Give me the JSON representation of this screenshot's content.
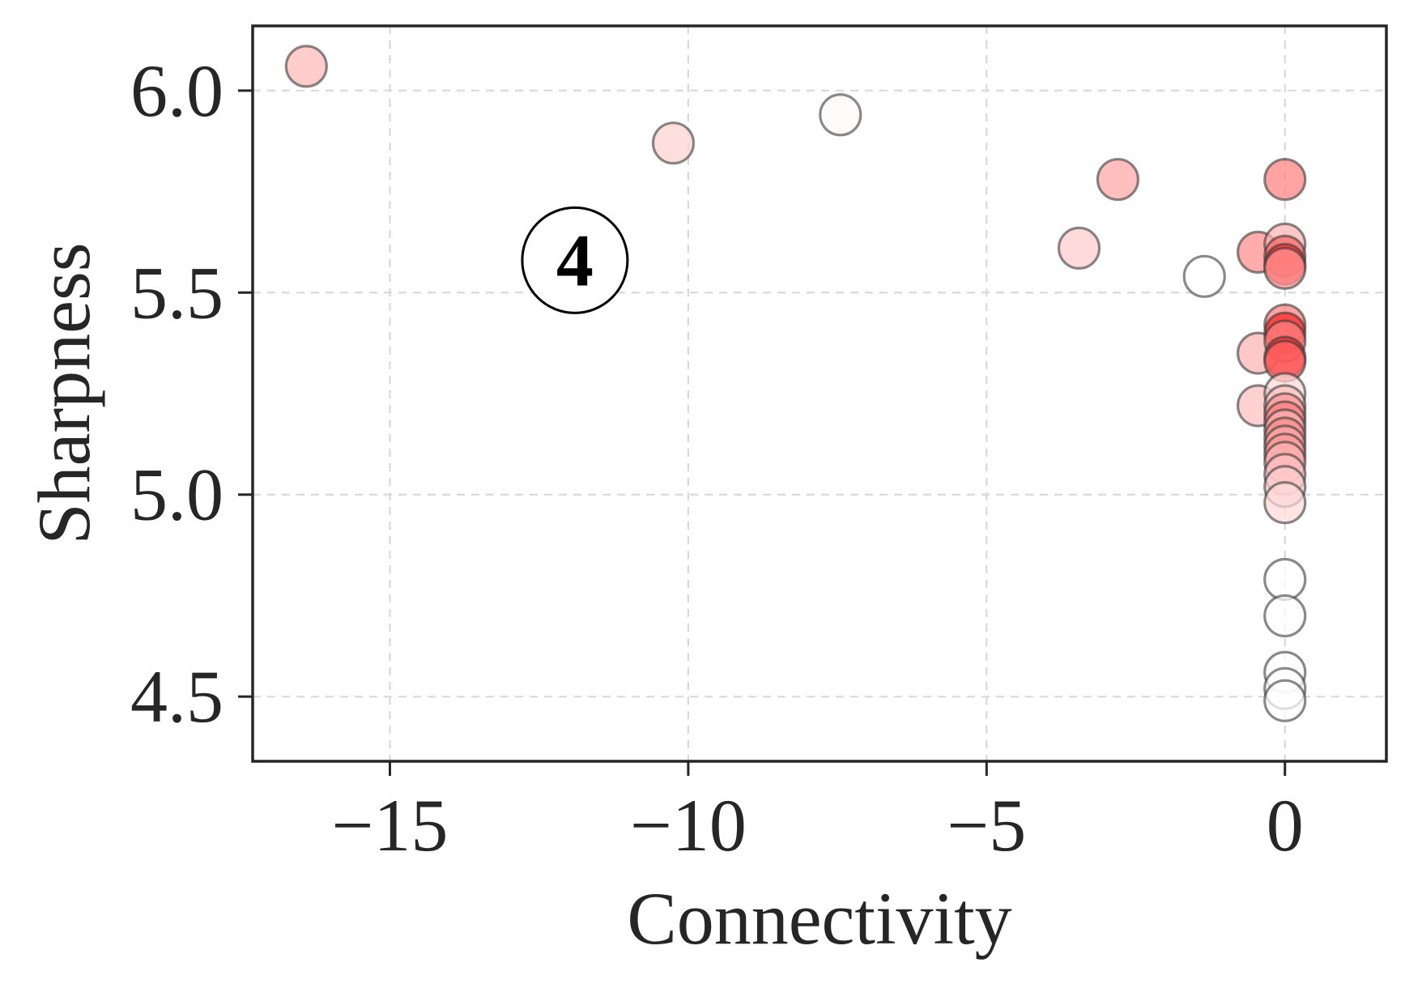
{
  "chart_data": {
    "type": "scatter",
    "title": "",
    "xlabel": "Connectivity",
    "ylabel": "Sharpness",
    "xlim": [
      -17.3,
      1.7
    ],
    "ylim": [
      4.34,
      6.16
    ],
    "xticks": [
      -15,
      -10,
      -5,
      0
    ],
    "xtick_labels": [
      "−15",
      "−10",
      "−5",
      "0"
    ],
    "yticks": [
      4.5,
      5.0,
      5.5,
      6.0
    ],
    "ytick_labels": [
      "4.5",
      "5.0",
      "5.5",
      "6.0"
    ],
    "grid": true,
    "annotation": {
      "text": "4",
      "x": -11.9,
      "y": 5.58
    },
    "marker_color": "#ff0000",
    "marker_edge_color": "#3a3a3a",
    "points": [
      {
        "x": -16.4,
        "y": 6.06,
        "intensity": 0.28
      },
      {
        "x": -10.25,
        "y": 5.87,
        "intensity": 0.18
      },
      {
        "x": -7.45,
        "y": 5.94,
        "intensity": 0.02
      },
      {
        "x": -2.8,
        "y": 5.78,
        "intensity": 0.35
      },
      {
        "x": -3.45,
        "y": 5.61,
        "intensity": 0.2
      },
      {
        "x": -1.35,
        "y": 5.54,
        "intensity": 0.0
      },
      {
        "x": -0.45,
        "y": 5.6,
        "intensity": 0.45
      },
      {
        "x": -0.45,
        "y": 5.35,
        "intensity": 0.3
      },
      {
        "x": -0.45,
        "y": 5.22,
        "intensity": 0.25
      },
      {
        "x": 0,
        "y": 5.78,
        "intensity": 0.5
      },
      {
        "x": 0,
        "y": 5.62,
        "intensity": 0.3
      },
      {
        "x": 0,
        "y": 5.59,
        "intensity": 0.6
      },
      {
        "x": 0,
        "y": 5.57,
        "intensity": 0.85
      },
      {
        "x": 0,
        "y": 5.56,
        "intensity": 0.4
      },
      {
        "x": 0,
        "y": 5.42,
        "intensity": 0.5
      },
      {
        "x": 0,
        "y": 5.4,
        "intensity": 0.85
      },
      {
        "x": 0,
        "y": 5.38,
        "intensity": 0.5
      },
      {
        "x": 0,
        "y": 5.34,
        "intensity": 0.85
      },
      {
        "x": 0,
        "y": 5.33,
        "intensity": 0.6
      },
      {
        "x": 0,
        "y": 5.25,
        "intensity": 0.15
      },
      {
        "x": 0,
        "y": 5.22,
        "intensity": 0.25
      },
      {
        "x": 0,
        "y": 5.2,
        "intensity": 0.4
      },
      {
        "x": 0,
        "y": 5.18,
        "intensity": 0.5
      },
      {
        "x": 0,
        "y": 5.16,
        "intensity": 0.3
      },
      {
        "x": 0,
        "y": 5.14,
        "intensity": 0.45
      },
      {
        "x": 0,
        "y": 5.12,
        "intensity": 0.35
      },
      {
        "x": 0,
        "y": 5.1,
        "intensity": 0.4
      },
      {
        "x": 0,
        "y": 5.08,
        "intensity": 0.3
      },
      {
        "x": 0,
        "y": 5.05,
        "intensity": 0.25
      },
      {
        "x": 0,
        "y": 5.02,
        "intensity": 0.2
      },
      {
        "x": 0,
        "y": 4.98,
        "intensity": 0.15
      },
      {
        "x": 0,
        "y": 4.79,
        "intensity": 0.0
      },
      {
        "x": 0,
        "y": 4.7,
        "intensity": 0.0
      },
      {
        "x": 0,
        "y": 4.56,
        "intensity": 0.0
      },
      {
        "x": 0,
        "y": 4.52,
        "intensity": 0.0
      },
      {
        "x": 0,
        "y": 4.49,
        "intensity": 0.0
      }
    ]
  }
}
